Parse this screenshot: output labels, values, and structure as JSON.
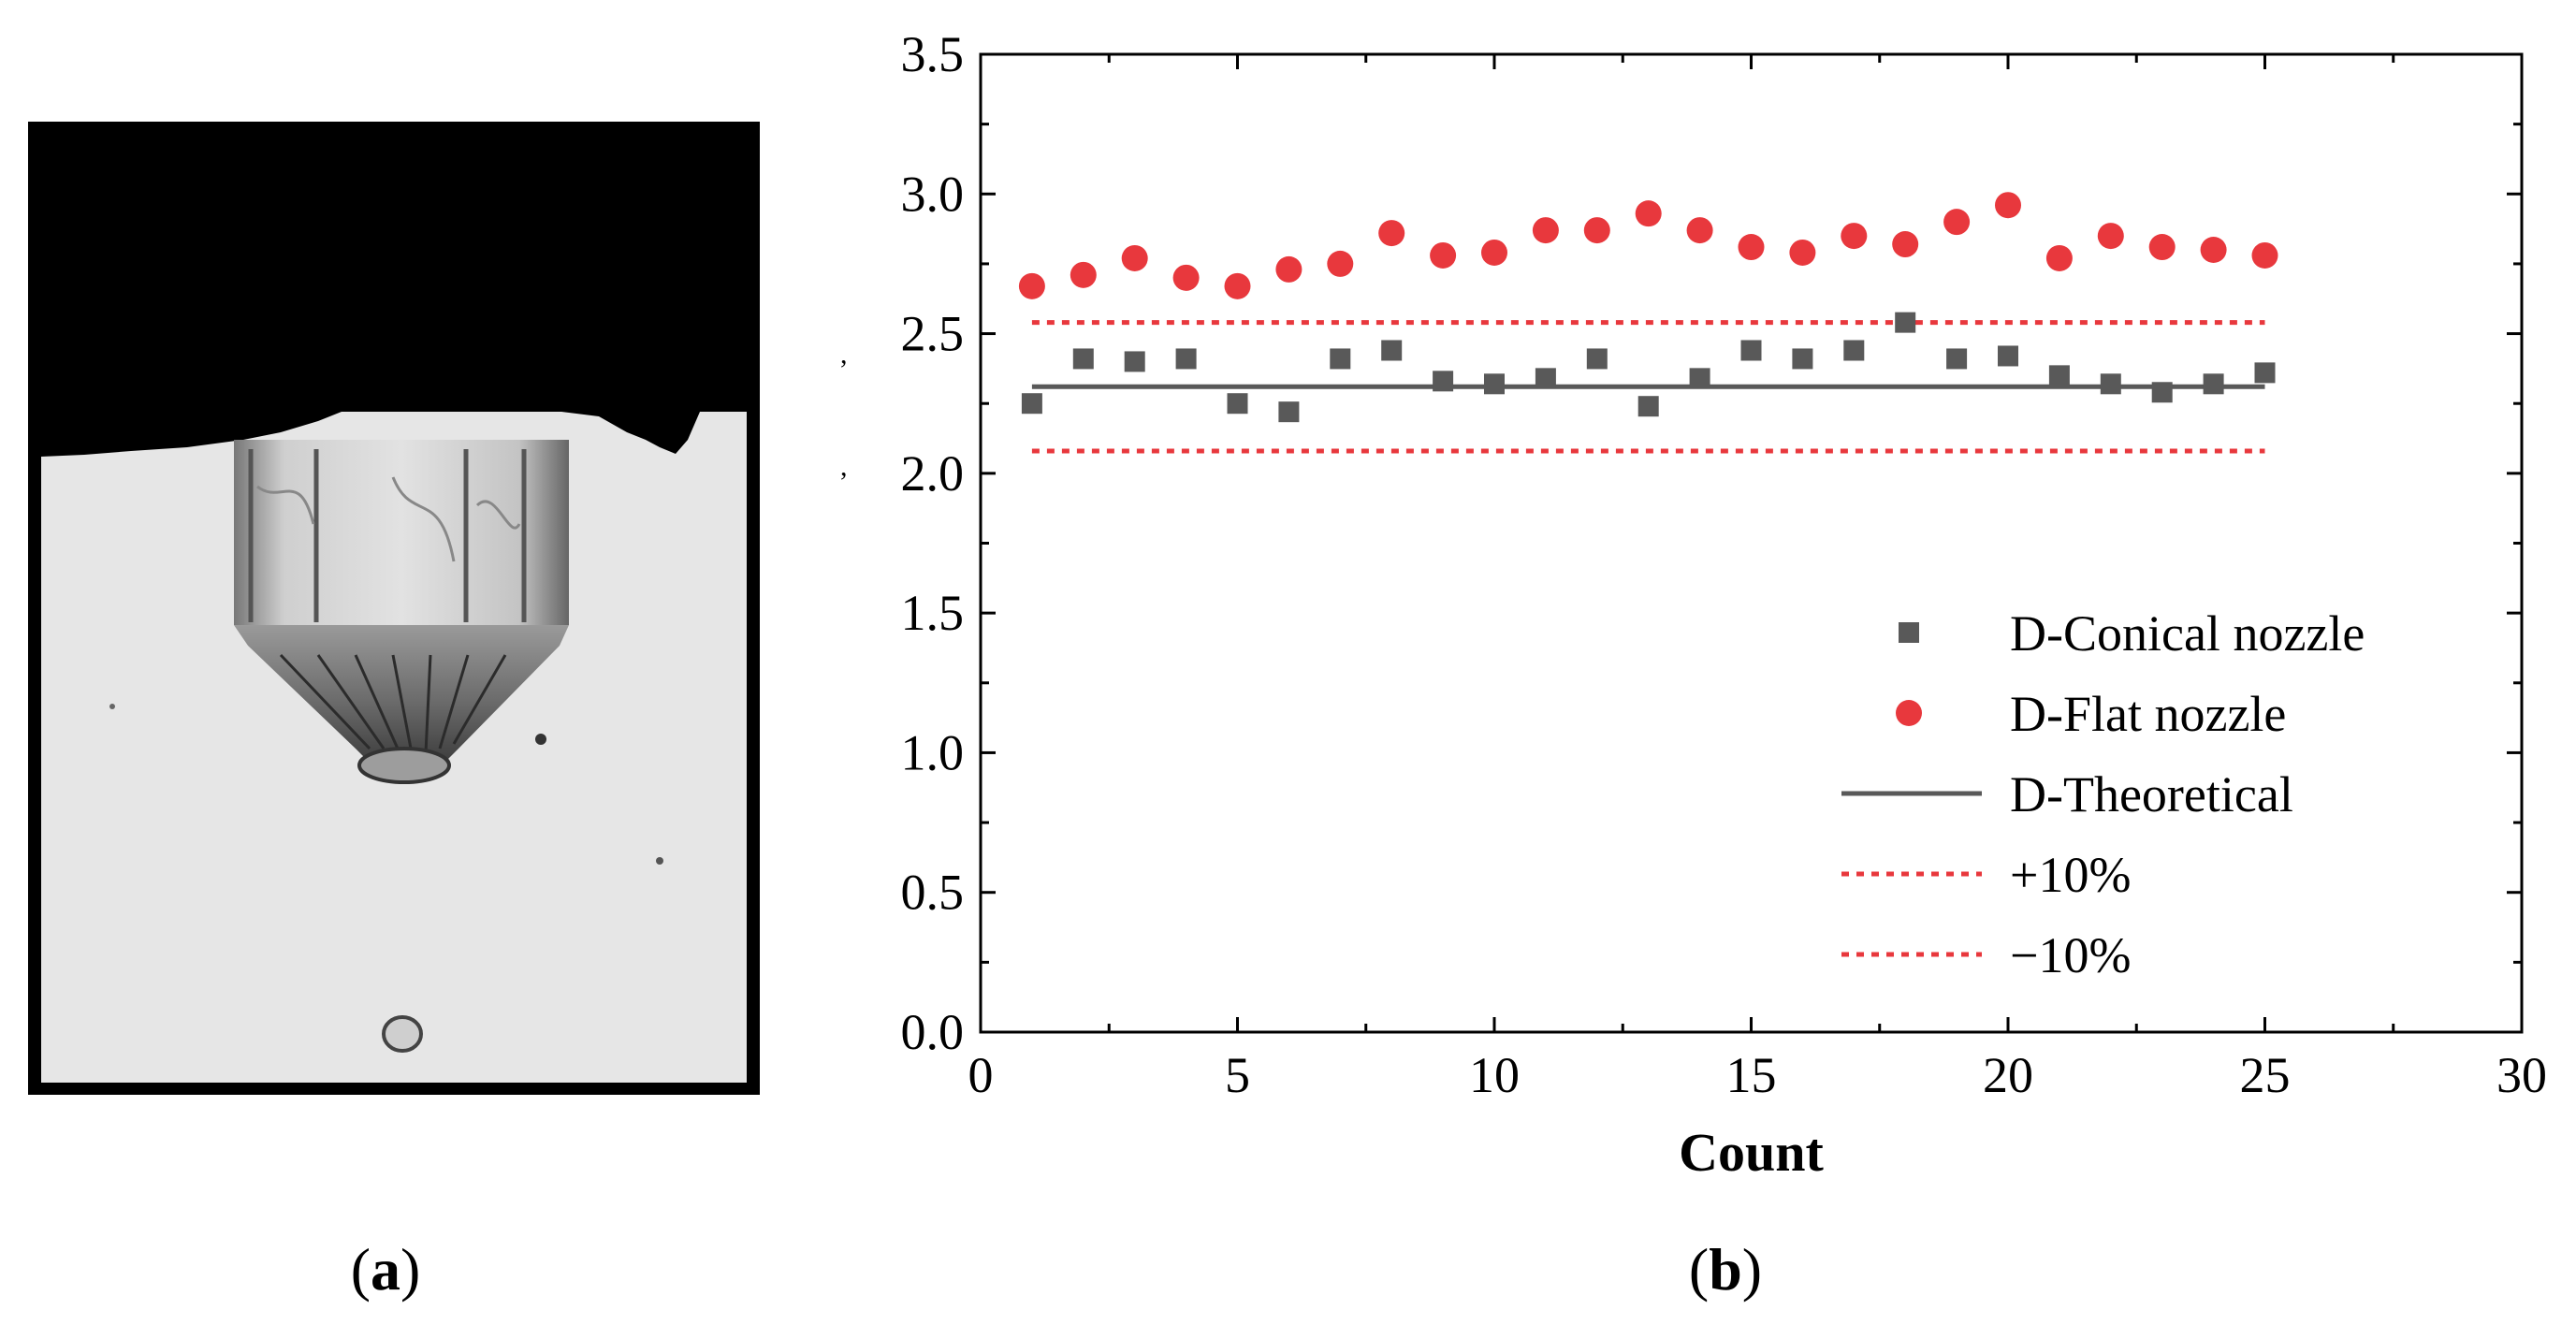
{
  "panels": {
    "a": {
      "label": "(a)",
      "letter": "a"
    },
    "b": {
      "label": "(b)",
      "letter": "b"
    }
  },
  "photo": {
    "description_icon": "nozzle-droplet-photo"
  },
  "chart_data": {
    "type": "scatter",
    "title": "",
    "xlabel": "Count",
    "ylabel": "",
    "xlim": [
      0,
      30
    ],
    "ylim": [
      0.0,
      3.5
    ],
    "xticks": [
      "0",
      "5",
      "10",
      "15",
      "20",
      "25",
      "30"
    ],
    "yticks": [
      "0.0",
      "0.5",
      "1.0",
      "1.5",
      "2.0",
      "2.5",
      "3.0",
      "3.5"
    ],
    "x": [
      1,
      2,
      3,
      4,
      5,
      6,
      7,
      8,
      9,
      10,
      11,
      12,
      13,
      14,
      15,
      16,
      17,
      18,
      19,
      20,
      21,
      22,
      23,
      24,
      25
    ],
    "series": [
      {
        "name": "D-Conical nozzle",
        "marker": "square",
        "color": "#595959",
        "values": [
          2.25,
          2.41,
          2.4,
          2.41,
          2.25,
          2.22,
          2.41,
          2.44,
          2.33,
          2.32,
          2.34,
          2.41,
          2.24,
          2.34,
          2.44,
          2.41,
          2.44,
          2.54,
          2.41,
          2.42,
          2.35,
          2.32,
          2.29,
          2.32,
          2.36
        ]
      },
      {
        "name": "D-Flat nozzle",
        "marker": "circle",
        "color": "#e8383d",
        "values": [
          2.67,
          2.71,
          2.77,
          2.7,
          2.67,
          2.73,
          2.75,
          2.86,
          2.78,
          2.79,
          2.87,
          2.87,
          2.93,
          2.87,
          2.81,
          2.79,
          2.85,
          2.82,
          2.9,
          2.96,
          2.77,
          2.85,
          2.81,
          2.8,
          2.78
        ]
      }
    ],
    "lines": [
      {
        "name": "D-Theoretical",
        "style": "solid",
        "color": "#595959",
        "x": [
          1,
          25
        ],
        "y": [
          2.31,
          2.31
        ]
      },
      {
        "name": "+10%",
        "style": "dotted",
        "color": "#e8383d",
        "x": [
          1,
          25
        ],
        "y": [
          2.54,
          2.54
        ]
      },
      {
        "name": "−10%",
        "style": "dotted",
        "color": "#e8383d",
        "x": [
          1,
          25
        ],
        "y": [
          2.08,
          2.08
        ]
      }
    ],
    "legend": {
      "placement": "lower-right",
      "entries": [
        "D-Conical nozzle",
        "D-Flat nozzle",
        "D-Theoretical",
        "+10%",
        "−10%"
      ]
    }
  }
}
